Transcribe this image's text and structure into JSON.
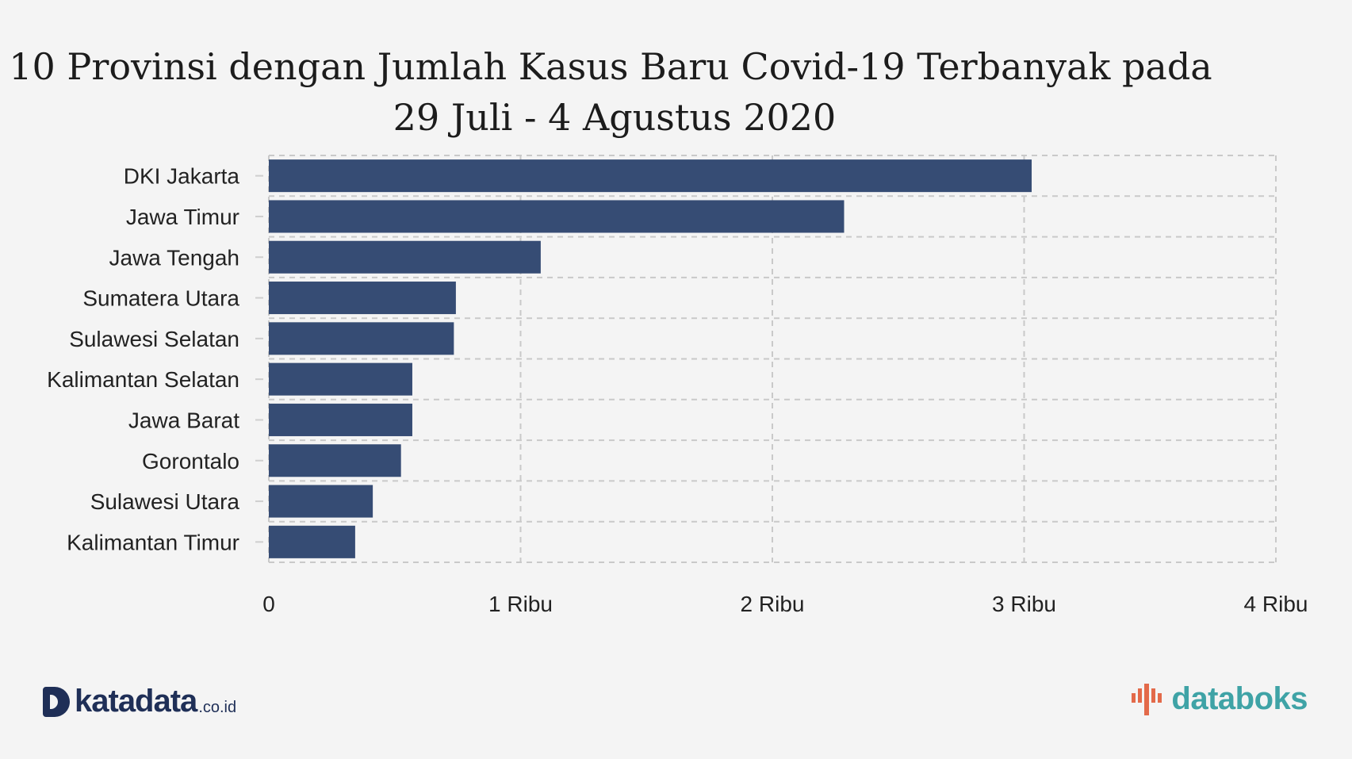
{
  "title_line1": "10 Provinsi dengan Jumlah Kasus Baru Covid-19 Terbanyak pada",
  "title_line2": "29 Juli - 4 Agustus 2020",
  "colors": {
    "bar": "#364c74",
    "background": "#f4f4f4",
    "grid": "#c9c9c9"
  },
  "footer": {
    "left_brand": "katadata",
    "left_suffix": ".co.id",
    "left_icon": "katadata-logo-icon",
    "right_brand": "databoks",
    "right_icon": "databoks-logo-icon"
  },
  "chart_data": {
    "type": "bar",
    "orientation": "horizontal",
    "title": "10 Provinsi dengan Jumlah Kasus Baru Covid-19 Terbanyak pada 29 Juli - 4 Agustus 2020",
    "categories": [
      "DKI Jakarta",
      "Jawa Timur",
      "Jawa Tengah",
      "Sumatera Utara",
      "Sulawesi Selatan",
      "Kalimantan Selatan",
      "Jawa Barat",
      "Gorontalo",
      "Sulawesi Utara",
      "Kalimantan Timur"
    ],
    "values": [
      3030,
      2285,
      1080,
      743,
      735,
      570,
      570,
      525,
      413,
      343
    ],
    "xlim": [
      0,
      4000
    ],
    "xticks": [
      0,
      1000,
      2000,
      3000,
      4000
    ],
    "xtick_labels": [
      "0",
      "1 Ribu",
      "2 Ribu",
      "3 Ribu",
      "4 Ribu"
    ],
    "xlabel": "",
    "ylabel": "",
    "grid": true,
    "legend": "none"
  }
}
